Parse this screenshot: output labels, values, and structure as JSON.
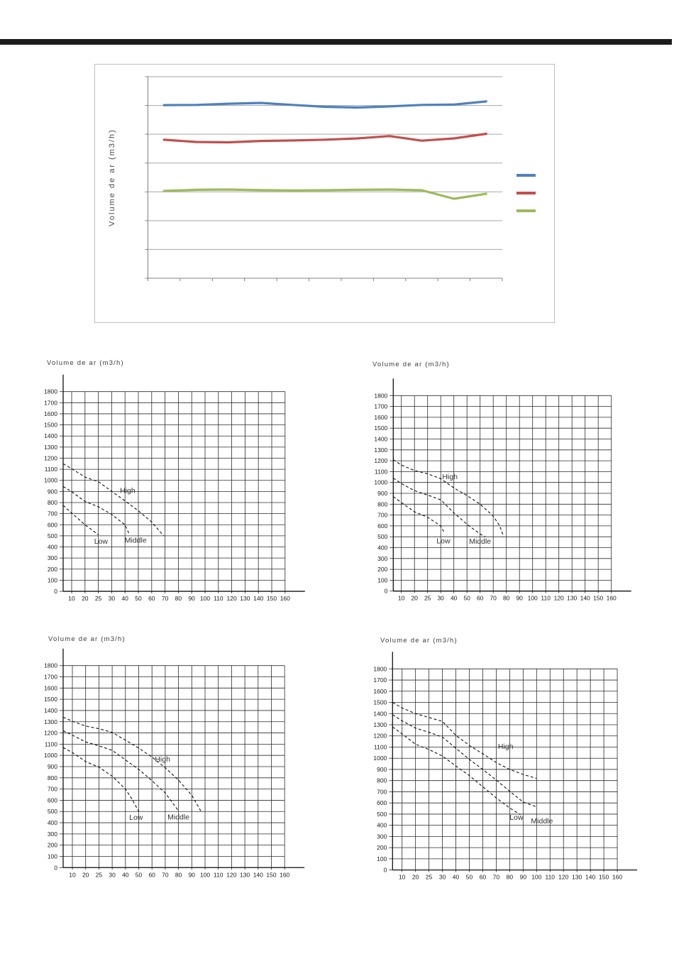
{
  "page": {
    "background": "#ffffff",
    "top_bar_color": "#1c1c1c"
  },
  "axes": {
    "yticks": [
      1800,
      1700,
      1600,
      1500,
      1400,
      1300,
      1200,
      1100,
      1000,
      900,
      800,
      700,
      600,
      500,
      400,
      300,
      200,
      100,
      0
    ],
    "xticks": [
      10,
      20,
      25,
      30,
      40,
      50,
      60,
      70,
      80,
      90,
      100,
      110,
      120,
      130,
      140,
      150,
      160
    ]
  },
  "chart_data": [
    {
      "id": "overview-line-chart",
      "type": "line",
      "ylabel": "Volume de ar (m3/h)",
      "ylim": [
        0,
        1750
      ],
      "grid_step": 250,
      "x_intervals": 11,
      "grid_on": true,
      "legend_position": "right",
      "series": [
        {
          "name": "series-blue",
          "color": "#4f81bd",
          "values": [
            1503,
            1505,
            1515,
            1522,
            1505,
            1488,
            1482,
            1492,
            1505,
            1508,
            1535
          ]
        },
        {
          "name": "series-red",
          "color": "#c0504d",
          "values": [
            1202,
            1183,
            1180,
            1192,
            1196,
            1203,
            1214,
            1234,
            1194,
            1214,
            1254
          ]
        },
        {
          "name": "series-green",
          "color": "#9bbb59",
          "values": [
            758,
            768,
            770,
            765,
            762,
            764,
            768,
            770,
            764,
            690,
            733
          ]
        }
      ]
    },
    {
      "id": "fan-curves-top-left",
      "type": "line",
      "title": "Volume de ar (m3/h)",
      "ylim": [
        0,
        1800
      ],
      "ytick_step": 100,
      "grid_on": true,
      "curves": [
        {
          "name": "High",
          "label_text": "High",
          "label_at": [
            42,
            885
          ],
          "points": [
            [
              0,
              1150
            ],
            [
              10,
              1105
            ],
            [
              20,
              1030
            ],
            [
              25,
              988
            ],
            [
              30,
              902
            ],
            [
              40,
              815
            ],
            [
              50,
              725
            ],
            [
              60,
              625
            ],
            [
              69,
              500
            ]
          ]
        },
        {
          "name": "Middle",
          "label_text": "Middle",
          "label_at": [
            48,
            440
          ],
          "points": [
            [
              0,
              945
            ],
            [
              10,
              898
            ],
            [
              20,
              810
            ],
            [
              25,
              762
            ],
            [
              30,
              693
            ],
            [
              40,
              600
            ],
            [
              43,
              520
            ]
          ]
        },
        {
          "name": "Low",
          "label_text": "Low",
          "label_at": [
            26,
            430
          ],
          "points": [
            [
              0,
              775
            ],
            [
              10,
              705
            ],
            [
              20,
              600
            ],
            [
              25,
              510
            ]
          ]
        }
      ]
    },
    {
      "id": "fan-curves-top-right",
      "type": "line",
      "title": "Volume de ar (m3/h)",
      "ylim": [
        0,
        1800
      ],
      "ytick_step": 100,
      "grid_on": true,
      "curves": [
        {
          "name": "High",
          "label_text": "High",
          "label_at": [
            37,
            1030
          ],
          "points": [
            [
              0,
              1210
            ],
            [
              10,
              1160
            ],
            [
              20,
              1110
            ],
            [
              25,
              1080
            ],
            [
              30,
              1035
            ],
            [
              40,
              950
            ],
            [
              50,
              880
            ],
            [
              60,
              800
            ],
            [
              70,
              690
            ],
            [
              75,
              600
            ],
            [
              78,
              500
            ]
          ]
        },
        {
          "name": "Middle",
          "label_text": "Middle",
          "label_at": [
            60,
            435
          ],
          "points": [
            [
              0,
              1040
            ],
            [
              10,
              990
            ],
            [
              20,
              925
            ],
            [
              25,
              885
            ],
            [
              30,
              840
            ],
            [
              40,
              720
            ],
            [
              50,
              615
            ],
            [
              60,
              525
            ],
            [
              64,
              500
            ]
          ]
        },
        {
          "name": "Low",
          "label_text": "Low",
          "label_at": [
            32,
            440
          ],
          "points": [
            [
              0,
              870
            ],
            [
              10,
              815
            ],
            [
              20,
              730
            ],
            [
              25,
              680
            ],
            [
              30,
              600
            ],
            [
              33,
              530
            ]
          ]
        }
      ]
    },
    {
      "id": "fan-curves-bottom-left",
      "type": "line",
      "title": "Volume de ar (m3/h)",
      "ylim": [
        0,
        1800
      ],
      "ytick_step": 100,
      "grid_on": true,
      "curves": [
        {
          "name": "High",
          "label_text": "High",
          "label_at": [
            68,
            945
          ],
          "points": [
            [
              0,
              1340
            ],
            [
              10,
              1305
            ],
            [
              20,
              1262
            ],
            [
              25,
              1238
            ],
            [
              30,
              1205
            ],
            [
              40,
              1135
            ],
            [
              50,
              1065
            ],
            [
              60,
              985
            ],
            [
              70,
              890
            ],
            [
              80,
              780
            ],
            [
              90,
              645
            ],
            [
              97,
              500
            ]
          ]
        },
        {
          "name": "Middle",
          "label_text": "Middle",
          "label_at": [
            80,
            430
          ],
          "points": [
            [
              0,
              1220
            ],
            [
              10,
              1180
            ],
            [
              20,
              1120
            ],
            [
              25,
              1085
            ],
            [
              30,
              1045
            ],
            [
              40,
              960
            ],
            [
              50,
              875
            ],
            [
              60,
              775
            ],
            [
              70,
              665
            ],
            [
              80,
              505
            ]
          ]
        },
        {
          "name": "Low",
          "label_text": "Low",
          "label_at": [
            48,
            425
          ],
          "points": [
            [
              0,
              1070
            ],
            [
              10,
              1025
            ],
            [
              20,
              945
            ],
            [
              25,
              895
            ],
            [
              30,
              815
            ],
            [
              40,
              700
            ],
            [
              45,
              610
            ],
            [
              50,
              500
            ]
          ]
        }
      ]
    },
    {
      "id": "fan-curves-bottom-right",
      "type": "line",
      "title": "Volume de ar (m3/h)",
      "ylim": [
        0,
        1800
      ],
      "ytick_step": 100,
      "grid_on": true,
      "curves": [
        {
          "name": "High",
          "label_text": "High",
          "label_at": [
            77,
            1085
          ],
          "points": [
            [
              0,
              1500
            ],
            [
              10,
              1450
            ],
            [
              20,
              1400
            ],
            [
              25,
              1365
            ],
            [
              30,
              1330
            ],
            [
              40,
              1205
            ],
            [
              50,
              1115
            ],
            [
              60,
              1040
            ],
            [
              70,
              962
            ],
            [
              80,
              900
            ],
            [
              90,
              855
            ],
            [
              100,
              820
            ]
          ]
        },
        {
          "name": "Middle",
          "label_text": "Middle",
          "label_at": [
            104,
            418
          ],
          "points": [
            [
              0,
              1390
            ],
            [
              10,
              1335
            ],
            [
              20,
              1270
            ],
            [
              25,
              1232
            ],
            [
              30,
              1190
            ],
            [
              40,
              1090
            ],
            [
              50,
              990
            ],
            [
              60,
              900
            ],
            [
              70,
              805
            ],
            [
              80,
              705
            ],
            [
              90,
              608
            ],
            [
              100,
              565
            ]
          ]
        },
        {
          "name": "Low",
          "label_text": "Low",
          "label_at": [
            85,
            450
          ],
          "points": [
            [
              0,
              1280
            ],
            [
              10,
              1218
            ],
            [
              20,
              1125
            ],
            [
              25,
              1078
            ],
            [
              30,
              1020
            ],
            [
              40,
              930
            ],
            [
              50,
              845
            ],
            [
              60,
              745
            ],
            [
              70,
              645
            ],
            [
              80,
              555
            ],
            [
              88,
              495
            ]
          ]
        }
      ]
    }
  ]
}
